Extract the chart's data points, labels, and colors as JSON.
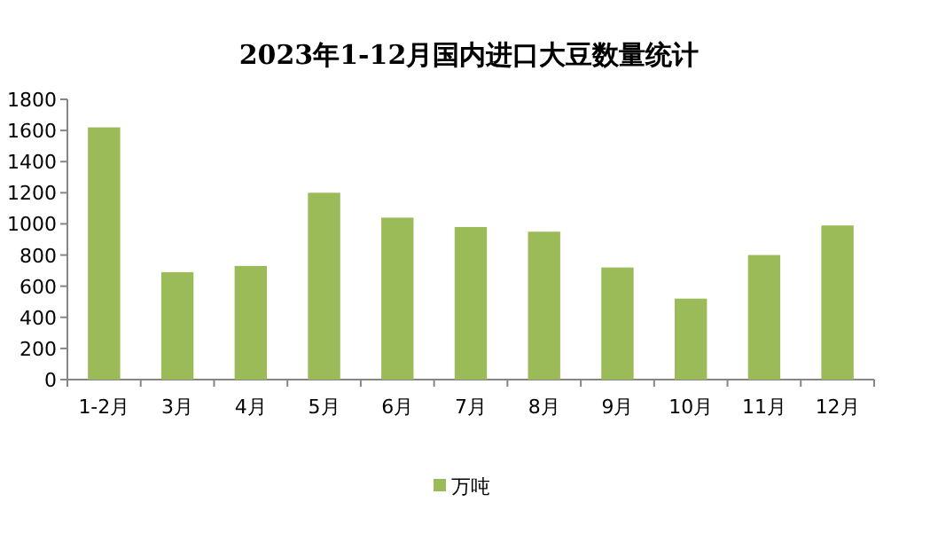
{
  "chart_data": {
    "type": "bar",
    "title": "2023年1-12月国内进口大豆数量统计",
    "categories": [
      "1-2月",
      "3月",
      "4月",
      "5月",
      "6月",
      "7月",
      "8月",
      "9月",
      "10月",
      "11月",
      "12月"
    ],
    "series": [
      {
        "name": "万吨",
        "color": "#9bbb59",
        "values": [
          1620,
          690,
          730,
          1200,
          1040,
          980,
          950,
          720,
          520,
          800,
          990
        ]
      }
    ],
    "ylim": [
      0,
      1800
    ],
    "yticks": [
      0,
      200,
      400,
      600,
      800,
      1000,
      1200,
      1400,
      1600,
      1800
    ],
    "legend": "bottom"
  }
}
